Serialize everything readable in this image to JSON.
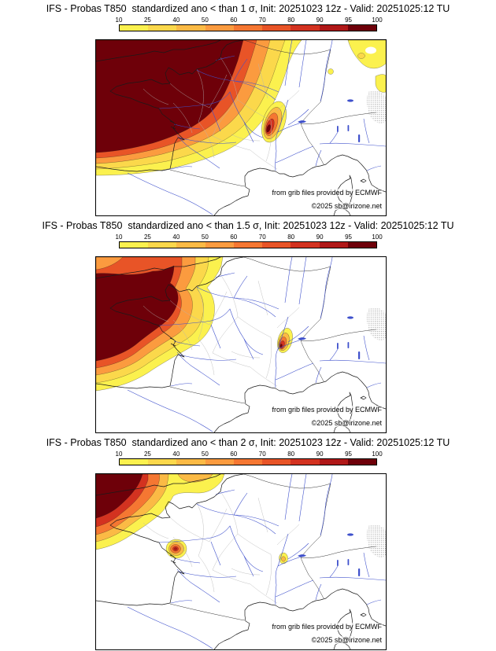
{
  "panels": [
    {
      "id": "sigma-1",
      "threshold_sigma": "1",
      "title": "IFS - Probas T850  standardized ano < than 1 σ, Init: 20251023 12z - Valid: 20251025:12 TU",
      "credit": "from grib files provided by ECMWF",
      "copyright": "©2025 sb@irizone.net"
    },
    {
      "id": "sigma-1.5",
      "threshold_sigma": "1.5",
      "title": "IFS - Probas T850  standardized ano < than 1.5 σ, Init: 20251023 12z - Valid: 20251025:12 TU",
      "credit": "from grib files provided by ECMWF",
      "copyright": "©2025 sb@irizone.net"
    },
    {
      "id": "sigma-2",
      "threshold_sigma": "2",
      "title": "IFS - Probas T850  standardized ano < than 2 σ, Init: 20251023 12z - Valid: 20251025:12 TU",
      "credit": "from grib files provided by ECMWF",
      "copyright": "©2025 sb@irizone.net"
    }
  ],
  "colorbar": {
    "ticks": [
      "10",
      "25",
      "40",
      "50",
      "60",
      "70",
      "80",
      "90",
      "95",
      "100"
    ],
    "colors": [
      "#FBF14E",
      "#FBD84B",
      "#FBBA45",
      "#FB9B3F",
      "#F57732",
      "#E85427",
      "#D33220",
      "#B01818",
      "#6E0009"
    ]
  },
  "map_colors": {
    "river_blue": "#3F51CC",
    "coastline": "#1A1A1A",
    "admin_grey": "#B4B4B4",
    "terrain_speckle_grey": "#8F8F8F"
  }
}
